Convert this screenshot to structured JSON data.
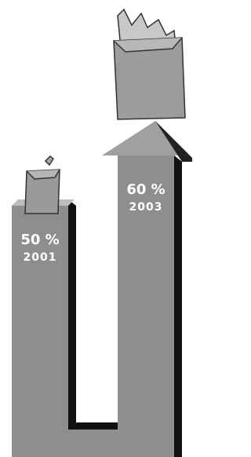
{
  "chart_data": {
    "type": "bar",
    "categories": [
      "2001",
      "2003"
    ],
    "values": [
      50,
      60
    ],
    "value_labels": [
      "50 %",
      "60 %"
    ],
    "color": "#8e8e8e"
  }
}
